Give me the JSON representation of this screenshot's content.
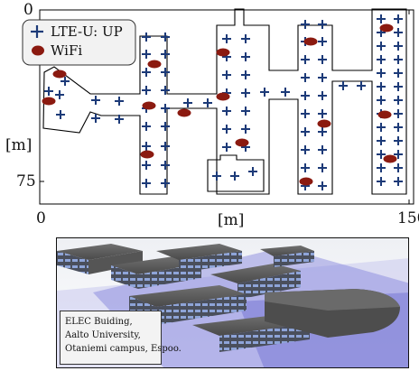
{
  "floor_plan": {
    "y_axis": {
      "unit": "[m]",
      "ticks": [
        "0",
        "75"
      ]
    },
    "x_axis": {
      "unit": "[m]",
      "ticks": [
        "0",
        "150"
      ]
    },
    "legend": {
      "lte_label": "LTE-U: UP",
      "wifi_label": "WiFi",
      "lte_color": "#1c3a78",
      "wifi_color": "#8b1a10"
    },
    "marker_counts": {
      "lte_u_up": 147,
      "wifi": 15
    }
  },
  "render": {
    "caption": [
      "ELEC Buiding,",
      "Aalto University,",
      "Otaniemi campus, Espoo."
    ]
  }
}
